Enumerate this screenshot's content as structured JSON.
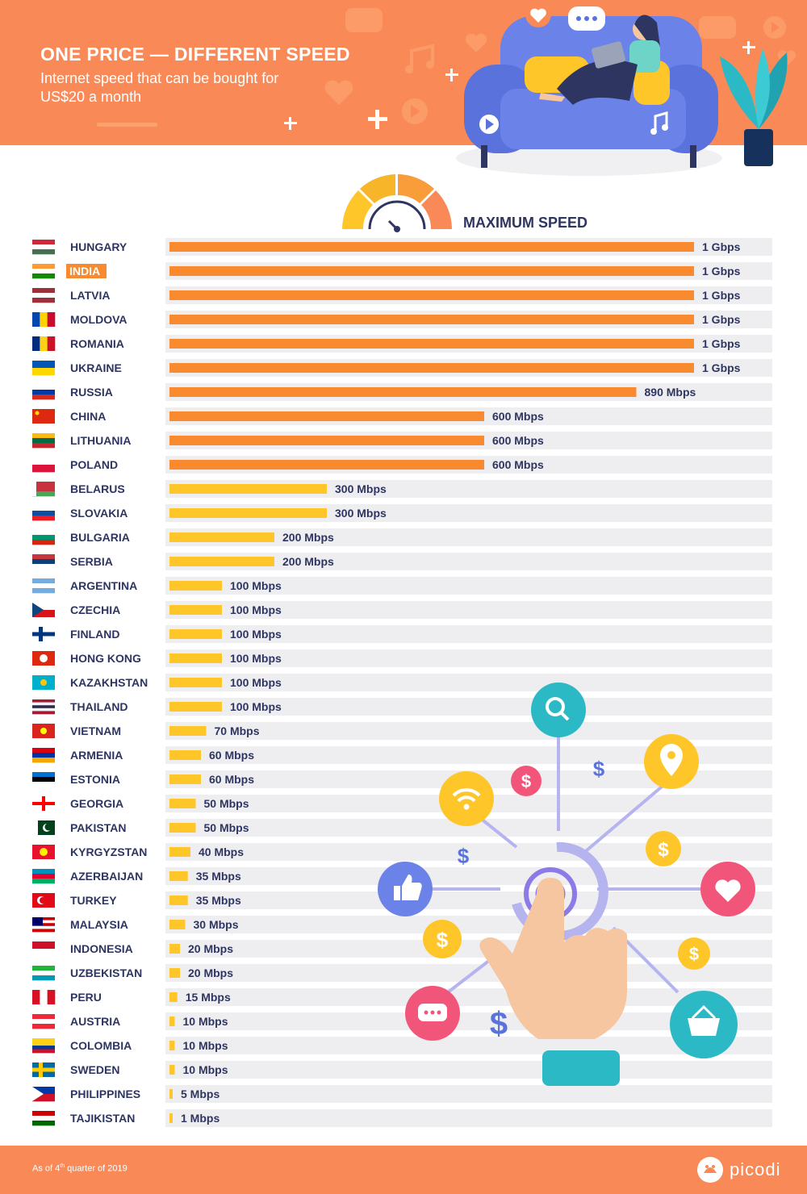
{
  "header": {
    "title": "ONE PRICE — DIFFERENT SPEED",
    "subtitle": "Internet speed that can be bought for US$20 a month"
  },
  "colors": {
    "header_bg": "#f98a58",
    "bar_high": "#f98a30",
    "bar_low": "#ffc62a",
    "track": "#eeeef0",
    "text": "#2e3560",
    "highlight": "#f98a30"
  },
  "chart_data": {
    "type": "bar",
    "orientation": "horizontal",
    "title": "MAXIMUM SPEED",
    "unit": "Mbps",
    "highlighted_category": "INDIA",
    "categories": [
      "HUNGARY",
      "INDIA",
      "LATVIA",
      "MOLDOVA",
      "ROMANIA",
      "UKRAINE",
      "RUSSIA",
      "CHINA",
      "LITHUANIA",
      "POLAND",
      "BELARUS",
      "SLOVAKIA",
      "BULGARIA",
      "SERBIA",
      "ARGENTINA",
      "CZECHIA",
      "FINLAND",
      "HONG KONG",
      "KAZAKHSTAN",
      "THAILAND",
      "VIETNAM",
      "ARMENIA",
      "ESTONIA",
      "GEORGIA",
      "PAKISTAN",
      "KYRGYZSTAN",
      "AZERBAIJAN",
      "TURKEY",
      "MALAYSIA",
      "INDONESIA",
      "UZBEKISTAN",
      "PERU",
      "AUSTRIA",
      "COLOMBIA",
      "SWEDEN",
      "PHILIPPINES",
      "TAJIKISTAN"
    ],
    "values": [
      1000,
      1000,
      1000,
      1000,
      1000,
      1000,
      890,
      600,
      600,
      600,
      300,
      300,
      200,
      200,
      100,
      100,
      100,
      100,
      100,
      100,
      70,
      60,
      60,
      50,
      50,
      40,
      35,
      35,
      30,
      20,
      20,
      15,
      10,
      10,
      10,
      5,
      1
    ],
    "labels": [
      "1 Gbps",
      "1 Gbps",
      "1 Gbps",
      "1 Gbps",
      "1 Gbps",
      "1 Gbps",
      "890 Mbps",
      "600 Mbps",
      "600 Mbps",
      "600 Mbps",
      "300 Mbps",
      "300 Mbps",
      "200 Mbps",
      "200 Mbps",
      "100 Mbps",
      "100 Mbps",
      "100 Mbps",
      "100 Mbps",
      "100 Mbps",
      "100 Mbps",
      "70 Mbps",
      "60 Mbps",
      "60 Mbps",
      "50 Mbps",
      "50 Mbps",
      "40 Mbps",
      "35 Mbps",
      "35 Mbps",
      "30 Mbps",
      "20 Mbps",
      "20 Mbps",
      "15 Mbps",
      "10 Mbps",
      "10 Mbps",
      "10 Mbps",
      "5 Mbps",
      "1 Mbps"
    ],
    "xlim": [
      0,
      1000
    ]
  },
  "footer": {
    "note_prefix": "As of 4",
    "note_sup": "th",
    "note_suffix": " quarter of 2019",
    "brand": "picodi"
  }
}
